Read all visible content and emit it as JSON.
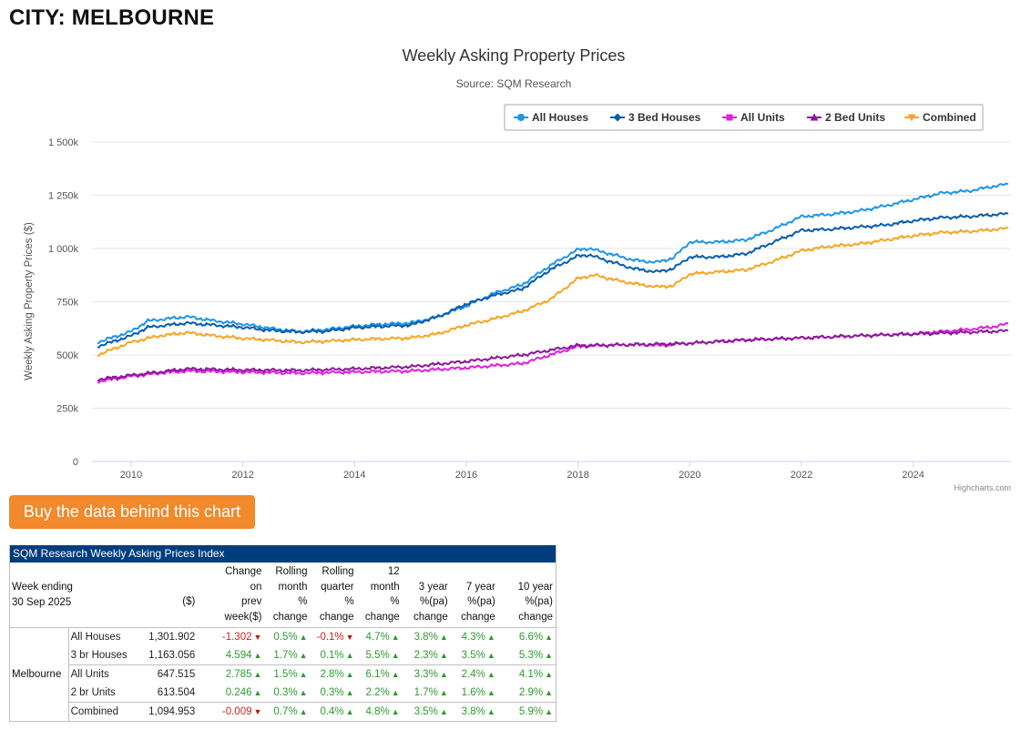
{
  "page": {
    "city_title": "CITY: MELBOURNE",
    "buy_button": "Buy the data behind this chart",
    "credit": "Highcharts.com"
  },
  "chart_data": {
    "type": "line",
    "title": "Weekly Asking Property Prices",
    "subtitle": "Source: SQM Research",
    "ylabel": "Weekly Asking Property Prices ($)",
    "xlabel": "",
    "ylim": [
      0,
      1500000
    ],
    "yticks": [
      0,
      250000,
      500000,
      750000,
      1000000,
      1250000,
      1500000
    ],
    "ytick_labels": [
      "0",
      "250k",
      "500k",
      "750k",
      "1 000k",
      "1 250k",
      "1 500k"
    ],
    "xlim": [
      2009.3,
      2025.75
    ],
    "xticks": [
      2010,
      2012,
      2014,
      2016,
      2018,
      2020,
      2022,
      2024
    ],
    "legend_position": "top-right",
    "grid": true,
    "series": [
      {
        "name": "All Houses",
        "color": "#2196e6",
        "marker": "circle",
        "points": [
          [
            2009.4,
            560000
          ],
          [
            2010,
            610000
          ],
          [
            2010.3,
            660000
          ],
          [
            2011,
            680000
          ],
          [
            2011.5,
            660000
          ],
          [
            2012,
            645000
          ],
          [
            2012.5,
            625000
          ],
          [
            2013,
            610000
          ],
          [
            2013.5,
            620000
          ],
          [
            2014,
            635000
          ],
          [
            2014.5,
            645000
          ],
          [
            2015,
            650000
          ],
          [
            2015.5,
            680000
          ],
          [
            2016,
            730000
          ],
          [
            2016.5,
            790000
          ],
          [
            2017,
            830000
          ],
          [
            2017.5,
            920000
          ],
          [
            2018,
            995000
          ],
          [
            2018.2,
            1000000
          ],
          [
            2018.5,
            980000
          ],
          [
            2019,
            945000
          ],
          [
            2019.4,
            935000
          ],
          [
            2019.7,
            955000
          ],
          [
            2020,
            1030000
          ],
          [
            2020.5,
            1030000
          ],
          [
            2021,
            1040000
          ],
          [
            2021.5,
            1090000
          ],
          [
            2022,
            1150000
          ],
          [
            2022.5,
            1160000
          ],
          [
            2023,
            1175000
          ],
          [
            2023.5,
            1200000
          ],
          [
            2024,
            1230000
          ],
          [
            2024.5,
            1260000
          ],
          [
            2025,
            1270000
          ],
          [
            2025.5,
            1295000
          ],
          [
            2025.7,
            1302000
          ]
        ]
      },
      {
        "name": "3 Bed Houses",
        "color": "#0b5da8",
        "marker": "diamond",
        "points": [
          [
            2009.4,
            540000
          ],
          [
            2010,
            590000
          ],
          [
            2010.3,
            630000
          ],
          [
            2011,
            650000
          ],
          [
            2011.5,
            640000
          ],
          [
            2012,
            630000
          ],
          [
            2012.5,
            615000
          ],
          [
            2013,
            608000
          ],
          [
            2013.5,
            612000
          ],
          [
            2014,
            628000
          ],
          [
            2014.5,
            635000
          ],
          [
            2015,
            640000
          ],
          [
            2015.5,
            680000
          ],
          [
            2016,
            740000
          ],
          [
            2016.5,
            780000
          ],
          [
            2017,
            810000
          ],
          [
            2017.5,
            900000
          ],
          [
            2018,
            965000
          ],
          [
            2018.2,
            970000
          ],
          [
            2018.5,
            945000
          ],
          [
            2019,
            905000
          ],
          [
            2019.4,
            890000
          ],
          [
            2019.7,
            905000
          ],
          [
            2020,
            960000
          ],
          [
            2020.5,
            960000
          ],
          [
            2021,
            975000
          ],
          [
            2021.5,
            1030000
          ],
          [
            2022,
            1085000
          ],
          [
            2022.5,
            1090000
          ],
          [
            2023,
            1100000
          ],
          [
            2023.5,
            1110000
          ],
          [
            2024,
            1130000
          ],
          [
            2024.5,
            1145000
          ],
          [
            2025,
            1150000
          ],
          [
            2025.5,
            1160000
          ],
          [
            2025.7,
            1163000
          ]
        ]
      },
      {
        "name": "All Units",
        "color": "#e020e0",
        "marker": "square",
        "points": [
          [
            2009.4,
            375000
          ],
          [
            2010,
            400000
          ],
          [
            2010.5,
            415000
          ],
          [
            2011,
            425000
          ],
          [
            2012,
            420000
          ],
          [
            2013,
            415000
          ],
          [
            2014,
            420000
          ],
          [
            2015,
            425000
          ],
          [
            2016,
            440000
          ],
          [
            2016.5,
            450000
          ],
          [
            2017,
            460000
          ],
          [
            2017.5,
            500000
          ],
          [
            2018,
            540000
          ],
          [
            2019,
            550000
          ],
          [
            2019.5,
            545000
          ],
          [
            2020,
            555000
          ],
          [
            2021,
            572000
          ],
          [
            2022,
            580000
          ],
          [
            2023,
            590000
          ],
          [
            2024,
            600000
          ],
          [
            2025,
            620000
          ],
          [
            2025.5,
            635000
          ],
          [
            2025.7,
            647500
          ]
        ]
      },
      {
        "name": "2 Bed Units",
        "color": "#8a1a9a",
        "marker": "triangle",
        "points": [
          [
            2009.4,
            385000
          ],
          [
            2010,
            405000
          ],
          [
            2011,
            435000
          ],
          [
            2012,
            430000
          ],
          [
            2013,
            428000
          ],
          [
            2014,
            435000
          ],
          [
            2015,
            445000
          ],
          [
            2016,
            470000
          ],
          [
            2017,
            500000
          ],
          [
            2018,
            545000
          ],
          [
            2019,
            548000
          ],
          [
            2020,
            555000
          ],
          [
            2021,
            570000
          ],
          [
            2022,
            580000
          ],
          [
            2023,
            590000
          ],
          [
            2024,
            598000
          ],
          [
            2025,
            607000
          ],
          [
            2025.7,
            613500
          ]
        ]
      },
      {
        "name": "Combined",
        "color": "#f5a623",
        "marker": "triangle-down",
        "points": [
          [
            2009.4,
            500000
          ],
          [
            2010,
            560000
          ],
          [
            2010.5,
            590000
          ],
          [
            2011,
            605000
          ],
          [
            2011.5,
            590000
          ],
          [
            2012,
            578000
          ],
          [
            2012.5,
            570000
          ],
          [
            2013,
            560000
          ],
          [
            2013.5,
            565000
          ],
          [
            2014,
            572000
          ],
          [
            2015,
            580000
          ],
          [
            2015.5,
            600000
          ],
          [
            2016,
            640000
          ],
          [
            2016.5,
            670000
          ],
          [
            2017,
            705000
          ],
          [
            2017.5,
            760000
          ],
          [
            2018,
            860000
          ],
          [
            2018.3,
            875000
          ],
          [
            2018.7,
            850000
          ],
          [
            2019,
            835000
          ],
          [
            2019.4,
            820000
          ],
          [
            2019.7,
            825000
          ],
          [
            2020,
            880000
          ],
          [
            2020.5,
            890000
          ],
          [
            2021,
            900000
          ],
          [
            2021.5,
            940000
          ],
          [
            2022,
            990000
          ],
          [
            2022.5,
            1010000
          ],
          [
            2023,
            1020000
          ],
          [
            2023.5,
            1040000
          ],
          [
            2024,
            1060000
          ],
          [
            2024.5,
            1075000
          ],
          [
            2025,
            1080000
          ],
          [
            2025.5,
            1090000
          ],
          [
            2025.7,
            1094953
          ]
        ]
      }
    ]
  },
  "table": {
    "title": "SQM Research Weekly Asking Prices Index",
    "week_label": "Week ending",
    "week_date": "30 Sep 2025",
    "headers": {
      "value": "($)",
      "change_prev": [
        "Change",
        "on",
        "prev",
        "week($)"
      ],
      "rolling_month": [
        "Rolling",
        "month",
        "%",
        "change"
      ],
      "rolling_quarter": [
        "Rolling",
        "quarter",
        "%",
        "change"
      ],
      "m12": [
        "12 month",
        "%",
        "change"
      ],
      "y3": [
        "3 year",
        "%(pa)",
        "change"
      ],
      "y7": [
        "7 year",
        "%(pa)",
        "change"
      ],
      "y10": [
        "10 year",
        "%(pa)",
        "change"
      ]
    },
    "city": "Melbourne",
    "rows": [
      {
        "name": "All Houses",
        "value": "1,301.902",
        "change": "-1.302",
        "change_dir": "down",
        "month": "0.5%",
        "month_dir": "up",
        "quarter": "-0.1%",
        "quarter_dir": "down",
        "m12": "4.7%",
        "y3": "3.8%",
        "y7": "4.3%",
        "y10": "6.6%"
      },
      {
        "name": "3 br Houses",
        "value": "1,163.056",
        "change": "4.594",
        "change_dir": "up",
        "month": "1.7%",
        "month_dir": "up",
        "quarter": "0.1%",
        "quarter_dir": "up",
        "m12": "5.5%",
        "y3": "2.3%",
        "y7": "3.5%",
        "y10": "5.3%"
      },
      {
        "name": "All Units",
        "value": "647.515",
        "change": "2.785",
        "change_dir": "up",
        "month": "1.5%",
        "month_dir": "up",
        "quarter": "2.8%",
        "quarter_dir": "up",
        "m12": "6.1%",
        "y3": "3.3%",
        "y7": "2.4%",
        "y10": "4.1%"
      },
      {
        "name": "2 br Units",
        "value": "613.504",
        "change": "0.246",
        "change_dir": "up",
        "month": "0.3%",
        "month_dir": "up",
        "quarter": "0.3%",
        "quarter_dir": "up",
        "m12": "2.2%",
        "y3": "1.7%",
        "y7": "1.6%",
        "y10": "2.9%"
      },
      {
        "name": "Combined",
        "value": "1,094.953",
        "change": "-0.009",
        "change_dir": "down",
        "month": "0.7%",
        "month_dir": "up",
        "quarter": "0.4%",
        "quarter_dir": "up",
        "m12": "4.8%",
        "y3": "3.5%",
        "y7": "3.8%",
        "y10": "5.9%"
      }
    ]
  }
}
